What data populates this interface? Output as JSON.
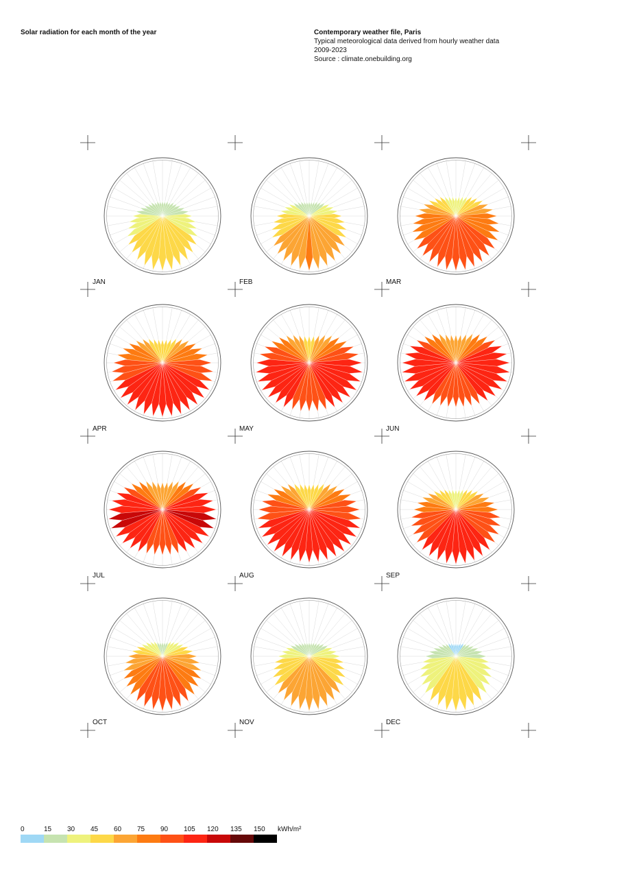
{
  "header": {
    "title": "Solar radiation for each month of the year",
    "file": "Contemporary weather file, Paris",
    "description": "Typical meteorological data derived from hourly weather data",
    "period": "2009-2023",
    "source": "Source : climate.onebuilding.org"
  },
  "chart_data": {
    "type": "radial",
    "series": [
      {
        "name": "JAN",
        "values": [
          15,
          15,
          16,
          16,
          18,
          19,
          21,
          24,
          27,
          30,
          34,
          37,
          41,
          45,
          48,
          51,
          53,
          55,
          55,
          55,
          53,
          51,
          48,
          45,
          41,
          37,
          34,
          30,
          27,
          24,
          21,
          19,
          18,
          16,
          16,
          15
        ]
      },
      {
        "name": "FEB",
        "values": [
          20,
          20,
          21,
          23,
          25,
          28,
          32,
          36,
          40,
          45,
          50,
          55,
          59,
          64,
          68,
          71,
          73,
          74,
          75,
          74,
          73,
          71,
          68,
          64,
          59,
          55,
          50,
          45,
          40,
          36,
          32,
          28,
          25,
          23,
          21,
          20
        ]
      },
      {
        "name": "MAR",
        "values": [
          35,
          36,
          38,
          41,
          46,
          51,
          57,
          63,
          69,
          75,
          80,
          85,
          89,
          93,
          95,
          97,
          99,
          100,
          100,
          100,
          99,
          97,
          95,
          93,
          89,
          85,
          80,
          75,
          69,
          63,
          57,
          51,
          46,
          41,
          38,
          36
        ]
      },
      {
        "name": "APR",
        "values": [
          45,
          46,
          49,
          54,
          60,
          67,
          75,
          82,
          89,
          95,
          100,
          103,
          105,
          106,
          106,
          106,
          106,
          105,
          105,
          105,
          106,
          106,
          106,
          106,
          105,
          103,
          100,
          95,
          89,
          82,
          75,
          67,
          60,
          54,
          49,
          46
        ]
      },
      {
        "name": "MAY",
        "values": [
          55,
          56,
          60,
          66,
          73,
          81,
          89,
          97,
          103,
          108,
          111,
          112,
          112,
          110,
          107,
          105,
          102,
          101,
          100,
          101,
          102,
          105,
          107,
          110,
          112,
          112,
          111,
          108,
          103,
          97,
          89,
          81,
          73,
          66,
          60,
          56
        ]
      },
      {
        "name": "JUN",
        "values": [
          60,
          61,
          65,
          72,
          80,
          88,
          97,
          105,
          111,
          115,
          117,
          117,
          114,
          111,
          106,
          102,
          98,
          96,
          95,
          96,
          98,
          102,
          106,
          111,
          114,
          117,
          117,
          115,
          111,
          105,
          97,
          88,
          80,
          72,
          65,
          61
        ]
      },
      {
        "name": "JUL",
        "values": [
          60,
          61,
          66,
          72,
          80,
          89,
          98,
          107,
          113,
          118,
          120,
          120,
          118,
          115,
          111,
          107,
          103,
          101,
          100,
          101,
          103,
          107,
          111,
          115,
          118,
          120,
          120,
          118,
          113,
          107,
          98,
          89,
          80,
          72,
          66,
          61
        ]
      },
      {
        "name": "AUG",
        "values": [
          50,
          51,
          54,
          59,
          66,
          73,
          81,
          88,
          95,
          100,
          104,
          107,
          108,
          108,
          108,
          107,
          106,
          105,
          105,
          105,
          106,
          107,
          108,
          108,
          108,
          107,
          104,
          100,
          95,
          88,
          81,
          73,
          66,
          59,
          54,
          51
        ]
      },
      {
        "name": "SEP",
        "values": [
          40,
          41,
          43,
          47,
          52,
          58,
          65,
          72,
          79,
          85,
          91,
          96,
          100,
          103,
          106,
          108,
          109,
          110,
          110,
          110,
          109,
          108,
          106,
          103,
          100,
          96,
          91,
          85,
          79,
          72,
          65,
          58,
          52,
          47,
          43,
          41
        ]
      },
      {
        "name": "OCT",
        "values": [
          25,
          25,
          27,
          30,
          33,
          38,
          42,
          48,
          54,
          60,
          66,
          72,
          78,
          82,
          87,
          90,
          93,
          94,
          95,
          94,
          93,
          90,
          87,
          82,
          78,
          72,
          66,
          60,
          54,
          48,
          42,
          38,
          33,
          30,
          27,
          25
        ]
      },
      {
        "name": "NOV",
        "values": [
          18,
          18,
          19,
          20,
          22,
          25,
          28,
          32,
          36,
          40,
          45,
          49,
          54,
          58,
          62,
          65,
          68,
          69,
          70,
          69,
          68,
          65,
          62,
          58,
          54,
          49,
          45,
          40,
          36,
          32,
          28,
          25,
          22,
          20,
          19,
          18
        ]
      },
      {
        "name": "DEC",
        "values": [
          12,
          12,
          13,
          14,
          15,
          17,
          19,
          22,
          25,
          28,
          31,
          35,
          38,
          41,
          44,
          47,
          48,
          50,
          50,
          50,
          48,
          47,
          44,
          41,
          38,
          35,
          31,
          28,
          25,
          22,
          19,
          17,
          15,
          14,
          13,
          12
        ]
      }
    ],
    "color_scale": {
      "ticks": [
        0,
        15,
        30,
        45,
        60,
        75,
        90,
        105,
        120,
        135,
        150
      ],
      "colors": [
        "#9fd8f5",
        "#c6e3b0",
        "#eef27c",
        "#fdd848",
        "#fca534",
        "#fd7b12",
        "#fe5116",
        "#fd2513",
        "#c80808",
        "#650808",
        "#000000"
      ],
      "unit": "kWh/m²"
    }
  }
}
